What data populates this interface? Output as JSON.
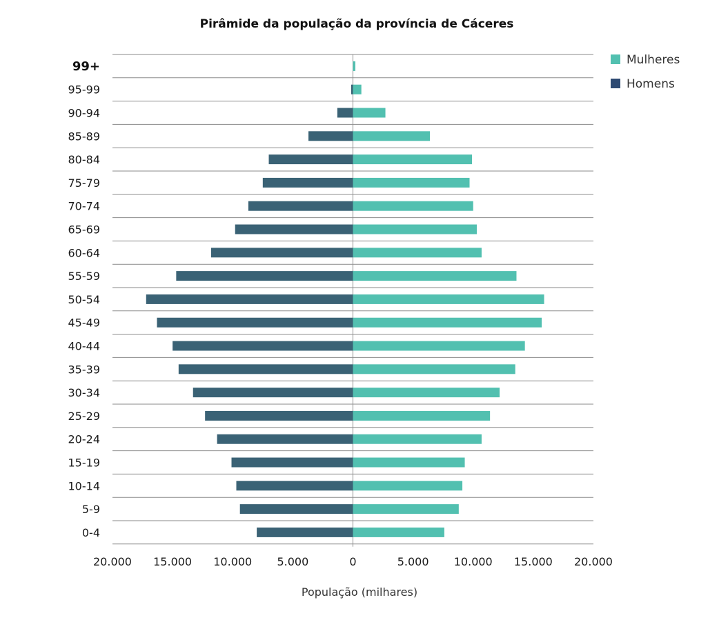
{
  "chart_data": {
    "type": "bar",
    "orientation": "horizontal",
    "subtype": "population-pyramid",
    "title": "Pirâmide da população da província de Cáceres",
    "xlabel": "População (milhares)",
    "ylabel": "",
    "xlim": [
      -20000,
      20000
    ],
    "x_ticks": [
      -20000,
      -15000,
      -10000,
      -5000,
      0,
      5000,
      10000,
      15000,
      20000
    ],
    "x_tick_labels": [
      "20.000",
      "15.000",
      "10.000",
      "5.000",
      "0",
      "5.000",
      "10.000",
      "15.000",
      "20.000"
    ],
    "categories": [
      "99+",
      "95-99",
      "90-94",
      "85-89",
      "80-84",
      "75-79",
      "70-74",
      "65-69",
      "60-64",
      "55-59",
      "50-54",
      "45-49",
      "40-44",
      "35-39",
      "30-34",
      "25-29",
      "20-24",
      "15-19",
      "10-14",
      "5-9",
      "0-4"
    ],
    "series": [
      {
        "name": "Mulheres",
        "color": "#52c0b0",
        "values": [
          200,
          700,
          2700,
          6400,
          9900,
          9700,
          10000,
          10300,
          10700,
          13600,
          15900,
          15700,
          14300,
          13500,
          12200,
          11400,
          10700,
          9300,
          9100,
          8800,
          7600
        ]
      },
      {
        "name": "Homens",
        "color": "#3a6275",
        "values": [
          0,
          150,
          1300,
          3700,
          7000,
          7500,
          8700,
          9800,
          11800,
          14700,
          17200,
          16300,
          15000,
          14500,
          13300,
          12300,
          11300,
          10100,
          9700,
          9400,
          8000
        ]
      }
    ],
    "legend": [
      {
        "label": "Mulheres",
        "color": "#52c0b0"
      },
      {
        "label": "Homens",
        "color": "#2d4a72"
      }
    ],
    "legend_position": "top-right",
    "grid": "horizontal"
  }
}
